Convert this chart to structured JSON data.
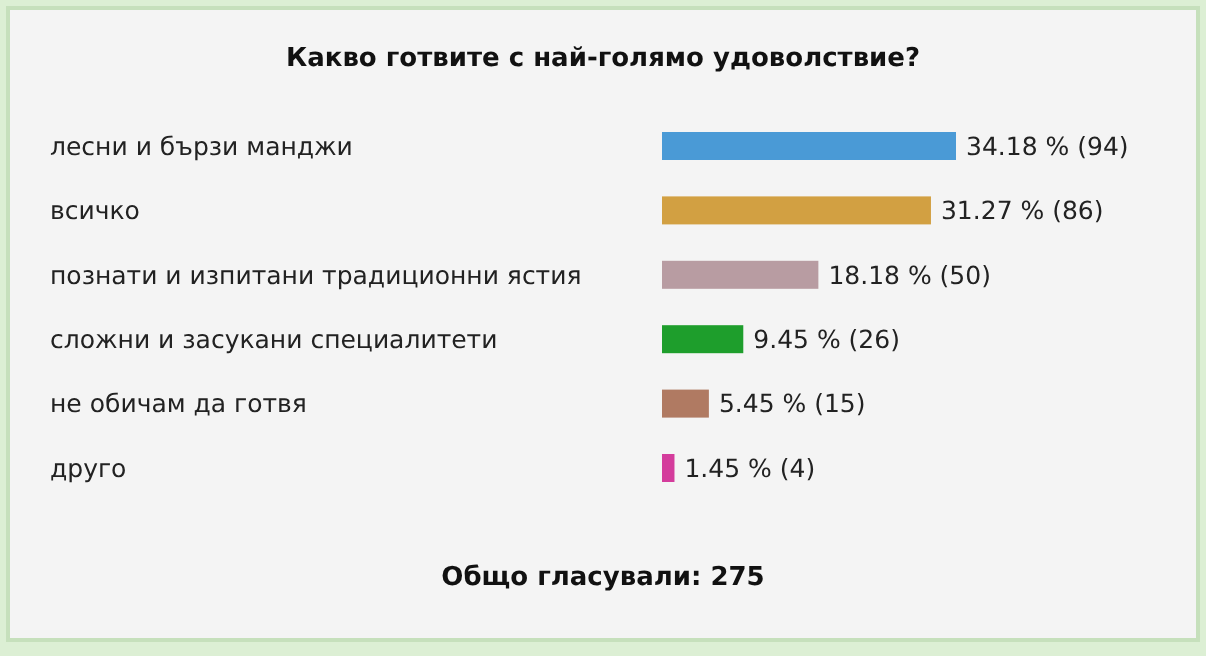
{
  "chart_data": {
    "type": "bar",
    "orientation": "horizontal",
    "title": "Какво готвите с най-голямо удоволствие?",
    "categories": [
      "лесни и бързи манджи",
      "всичко",
      "познати и изпитани традиционни ястия",
      "сложни и засукани специалитети",
      "не обичам да готвя",
      "друго"
    ],
    "values": [
      34.18,
      31.27,
      18.18,
      9.45,
      5.45,
      1.45
    ],
    "colors": [
      "#4a9ad6",
      "#d2a042",
      "#b89ca2",
      "#1e9e2c",
      "#b07a62",
      "#d43c9c"
    ],
    "value_labels": [
      "34.18 % (94)",
      "31.27 % (86)",
      "18.18 % (50)",
      "9.45 % (26)",
      "5.45 % (15)",
      "1.45 % (4)"
    ],
    "annotations": [
      "Общо гласували: 275"
    ]
  }
}
